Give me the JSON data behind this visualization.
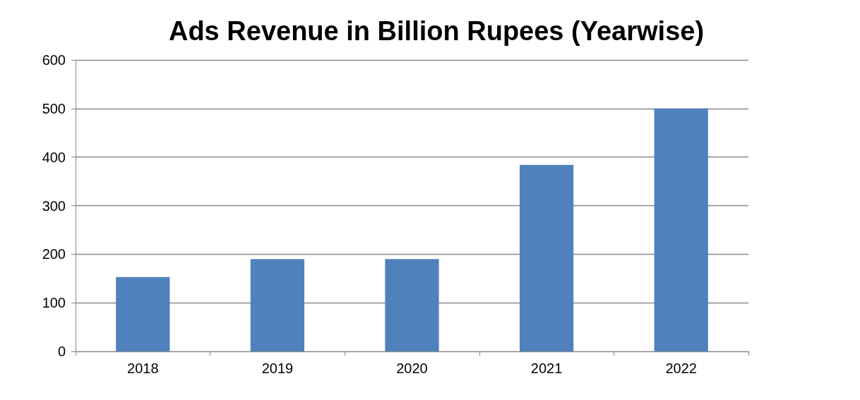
{
  "chart_data": {
    "type": "bar",
    "title": "Ads Revenue in Billion Rupees (Yearwise)",
    "categories": [
      "2018",
      "2019",
      "2020",
      "2021",
      "2022"
    ],
    "values": [
      153,
      190,
      190,
      384,
      500
    ],
    "color": "#4f81bd",
    "ylim": [
      0,
      600
    ],
    "yticks": [
      0,
      100,
      200,
      300,
      400,
      500,
      600
    ],
    "grid": "y"
  }
}
